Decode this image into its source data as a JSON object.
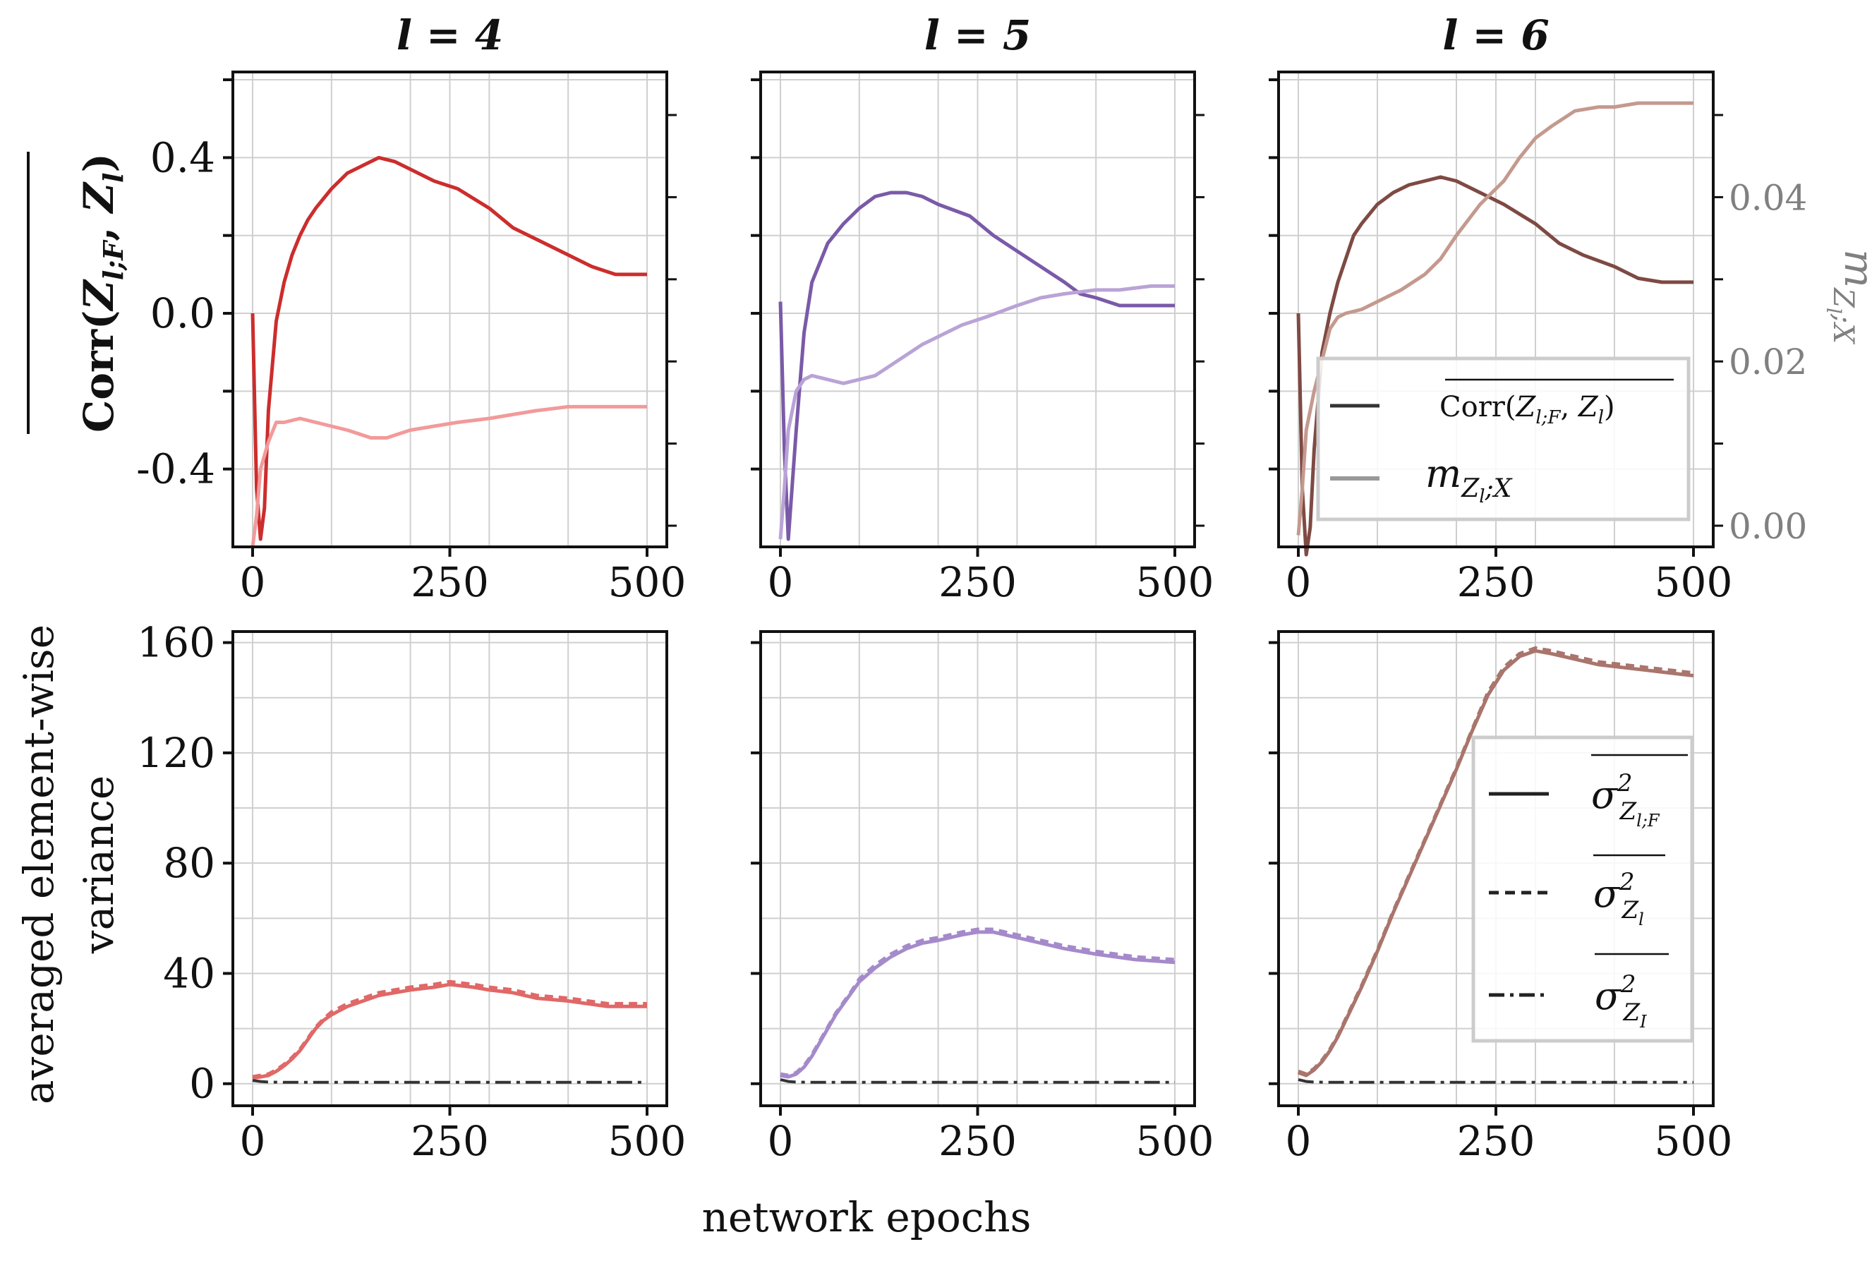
{
  "figure": {
    "xlabel": "network epochs",
    "top_ylabel": "Corr(Z_{l;F}, Z_l) (averaged)",
    "bottom_ylabel": [
      "averaged element-wise",
      "variance"
    ],
    "right_ylabel": "m_{Z_l;X}"
  },
  "colors": {
    "l4": {
      "corr": "#cc2d2d",
      "m": "#f29a9a",
      "var": "#e06868"
    },
    "l5": {
      "corr": "#7a5aa8",
      "m": "#b9a3d6",
      "var": "#a58acb"
    },
    "l6": {
      "corr": "#7e4a43",
      "m": "#c4998e",
      "var": "#a9756c"
    },
    "noise": "#333333"
  },
  "chart_data": [
    {
      "type": "line",
      "panel": "top",
      "title": "l = 4",
      "xlim": [
        0,
        500
      ],
      "ylim": [
        -0.6,
        0.62
      ],
      "yticks": [
        "-0.4",
        "0.0",
        "0.4"
      ],
      "xticks": [
        "0",
        "250",
        "500"
      ],
      "series": [
        {
          "key": "corr",
          "x": [
            0,
            5,
            10,
            15,
            20,
            30,
            40,
            50,
            60,
            70,
            80,
            100,
            120,
            140,
            160,
            180,
            200,
            230,
            260,
            300,
            330,
            360,
            400,
            430,
            460,
            500
          ],
          "y": [
            0.0,
            -0.45,
            -0.58,
            -0.5,
            -0.25,
            -0.02,
            0.08,
            0.15,
            0.2,
            0.24,
            0.27,
            0.32,
            0.36,
            0.38,
            0.4,
            0.39,
            0.37,
            0.34,
            0.32,
            0.27,
            0.22,
            0.19,
            0.15,
            0.12,
            0.1,
            0.1
          ]
        },
        {
          "key": "m",
          "x": [
            0,
            5,
            10,
            20,
            30,
            40,
            60,
            80,
            100,
            120,
            150,
            170,
            200,
            230,
            260,
            300,
            330,
            360,
            400,
            430,
            470,
            500
          ],
          "y": [
            -0.6,
            -0.52,
            -0.4,
            -0.33,
            -0.28,
            -0.28,
            -0.27,
            -0.28,
            -0.29,
            -0.3,
            -0.32,
            -0.32,
            -0.3,
            -0.29,
            -0.28,
            -0.27,
            -0.26,
            -0.25,
            -0.24,
            -0.24,
            -0.24,
            -0.24
          ]
        }
      ]
    },
    {
      "type": "line",
      "panel": "top",
      "title": "l = 5",
      "xlim": [
        0,
        500
      ],
      "ylim": [
        -0.6,
        0.62
      ],
      "xticks": [
        "0",
        "250",
        "500"
      ],
      "series": [
        {
          "key": "corr",
          "x": [
            0,
            5,
            10,
            20,
            30,
            40,
            50,
            60,
            80,
            100,
            120,
            140,
            160,
            180,
            200,
            240,
            270,
            300,
            330,
            360,
            380,
            400,
            430,
            460,
            500
          ],
          "y": [
            0.03,
            -0.35,
            -0.58,
            -0.3,
            -0.05,
            0.08,
            0.13,
            0.18,
            0.23,
            0.27,
            0.3,
            0.31,
            0.31,
            0.3,
            0.28,
            0.25,
            0.2,
            0.16,
            0.12,
            0.08,
            0.05,
            0.04,
            0.02,
            0.02,
            0.02
          ]
        },
        {
          "key": "m",
          "x": [
            0,
            5,
            10,
            20,
            30,
            40,
            60,
            80,
            100,
            120,
            150,
            180,
            200,
            230,
            260,
            300,
            330,
            360,
            400,
            430,
            470,
            500
          ],
          "y": [
            -0.58,
            -0.45,
            -0.3,
            -0.2,
            -0.17,
            -0.16,
            -0.17,
            -0.18,
            -0.17,
            -0.16,
            -0.12,
            -0.08,
            -0.06,
            -0.03,
            -0.01,
            0.02,
            0.04,
            0.05,
            0.06,
            0.06,
            0.07,
            0.07
          ]
        }
      ]
    },
    {
      "type": "line",
      "panel": "top",
      "title": "l = 6",
      "xlim": [
        0,
        500
      ],
      "ylim": [
        -0.6,
        0.62
      ],
      "xticks": [
        "0",
        "250",
        "500"
      ],
      "yticks_right": [
        "0.00",
        "0.02",
        "0.04"
      ],
      "series": [
        {
          "key": "corr",
          "x": [
            0,
            5,
            10,
            15,
            20,
            30,
            40,
            50,
            60,
            70,
            80,
            100,
            120,
            140,
            160,
            180,
            200,
            230,
            260,
            300,
            330,
            360,
            400,
            430,
            460,
            500
          ],
          "y": [
            0.0,
            -0.45,
            -0.62,
            -0.55,
            -0.35,
            -0.1,
            0.0,
            0.08,
            0.14,
            0.2,
            0.23,
            0.28,
            0.31,
            0.33,
            0.34,
            0.35,
            0.34,
            0.31,
            0.28,
            0.23,
            0.18,
            0.15,
            0.12,
            0.09,
            0.08,
            0.08
          ]
        },
        {
          "key": "m",
          "x": [
            0,
            5,
            10,
            20,
            30,
            40,
            50,
            60,
            80,
            100,
            130,
            160,
            180,
            200,
            230,
            260,
            280,
            300,
            320,
            350,
            380,
            400,
            430,
            460,
            500
          ],
          "y": [
            -0.57,
            -0.45,
            -0.3,
            -0.2,
            -0.12,
            -0.04,
            -0.01,
            0.0,
            0.01,
            0.03,
            0.06,
            0.1,
            0.14,
            0.2,
            0.28,
            0.34,
            0.4,
            0.45,
            0.48,
            0.52,
            0.53,
            0.53,
            0.54,
            0.54,
            0.54
          ]
        }
      ]
    },
    {
      "type": "line",
      "panel": "bottom",
      "title": "",
      "xlim": [
        0,
        500
      ],
      "ylim": [
        -8,
        164
      ],
      "yticks": [
        "0",
        "40",
        "80",
        "120",
        "160"
      ],
      "xticks": [
        "0",
        "250",
        "500"
      ],
      "series": [
        {
          "key": "var_F",
          "x": [
            0,
            10,
            20,
            30,
            40,
            50,
            60,
            70,
            80,
            90,
            100,
            120,
            140,
            160,
            180,
            200,
            230,
            250,
            280,
            300,
            330,
            360,
            400,
            450,
            500
          ],
          "y": [
            2,
            2.5,
            3,
            4.5,
            6.5,
            9,
            12,
            16,
            20,
            23,
            25,
            28,
            30,
            32,
            33,
            34,
            35,
            36,
            35,
            34,
            33,
            31,
            30,
            28,
            28
          ]
        },
        {
          "key": "var_l",
          "x": [
            0,
            10,
            20,
            30,
            40,
            50,
            60,
            70,
            80,
            90,
            100,
            120,
            140,
            160,
            180,
            200,
            230,
            250,
            280,
            300,
            330,
            360,
            400,
            450,
            500
          ],
          "y": [
            2.5,
            3,
            3.5,
            5,
            7,
            9.5,
            12.5,
            16.5,
            20.5,
            23.5,
            26,
            29,
            31,
            33,
            34,
            35,
            36,
            37,
            36,
            35,
            34,
            32,
            31,
            29,
            29
          ]
        },
        {
          "key": "var_I",
          "x": [
            0,
            10,
            20,
            40,
            60,
            100,
            200,
            300,
            400,
            500
          ],
          "y": [
            1.2,
            0.8,
            0.6,
            0.5,
            0.5,
            0.5,
            0.5,
            0.5,
            0.5,
            0.5
          ]
        }
      ]
    },
    {
      "type": "line",
      "panel": "bottom",
      "title": "",
      "xlim": [
        0,
        500
      ],
      "ylim": [
        -8,
        164
      ],
      "xticks": [
        "0",
        "250",
        "500"
      ],
      "series": [
        {
          "key": "var_F",
          "x": [
            0,
            10,
            20,
            30,
            40,
            50,
            60,
            70,
            80,
            90,
            100,
            120,
            140,
            160,
            180,
            200,
            230,
            250,
            270,
            300,
            330,
            360,
            400,
            450,
            500
          ],
          "y": [
            3,
            2.5,
            3.5,
            6,
            10,
            15,
            20,
            25,
            29,
            33,
            37,
            42,
            46,
            49,
            51,
            52,
            54,
            55,
            55,
            53,
            51,
            49,
            47,
            45,
            44
          ]
        },
        {
          "key": "var_l",
          "x": [
            0,
            10,
            20,
            30,
            40,
            50,
            60,
            70,
            80,
            90,
            100,
            120,
            140,
            160,
            180,
            200,
            230,
            250,
            270,
            300,
            330,
            360,
            400,
            450,
            500
          ],
          "y": [
            3.5,
            3,
            4,
            6.5,
            10.5,
            15.5,
            20.5,
            25.5,
            29.5,
            33.5,
            38,
            43,
            47,
            50,
            52,
            53,
            55,
            56,
            56,
            54,
            52,
            50,
            48,
            46,
            45
          ]
        },
        {
          "key": "var_I",
          "x": [
            0,
            10,
            20,
            40,
            60,
            100,
            200,
            300,
            400,
            500
          ],
          "y": [
            1.5,
            0.8,
            0.6,
            0.5,
            0.5,
            0.5,
            0.5,
            0.5,
            0.5,
            0.5
          ]
        }
      ]
    },
    {
      "type": "line",
      "panel": "bottom",
      "title": "",
      "xlim": [
        0,
        500
      ],
      "ylim": [
        -8,
        164
      ],
      "xticks": [
        "0",
        "250",
        "500"
      ],
      "series": [
        {
          "key": "var_F",
          "x": [
            0,
            10,
            20,
            30,
            40,
            50,
            60,
            80,
            100,
            120,
            140,
            160,
            180,
            200,
            220,
            240,
            260,
            280,
            300,
            320,
            350,
            380,
            410,
            440,
            470,
            500
          ],
          "y": [
            4,
            3,
            5,
            8,
            12,
            17,
            23,
            35,
            48,
            62,
            75,
            88,
            101,
            114,
            128,
            141,
            150,
            155,
            157,
            156,
            154,
            152,
            151,
            150,
            149,
            148
          ]
        },
        {
          "key": "var_l",
          "x": [
            0,
            10,
            20,
            30,
            40,
            50,
            60,
            80,
            100,
            120,
            140,
            160,
            180,
            200,
            220,
            240,
            260,
            280,
            300,
            320,
            350,
            380,
            410,
            440,
            470,
            500
          ],
          "y": [
            4.5,
            3.5,
            5.5,
            8.5,
            12.5,
            17.5,
            23.5,
            35.5,
            48.5,
            62.5,
            75.5,
            88.5,
            101.5,
            114.5,
            128.5,
            142,
            151,
            156,
            158,
            157,
            155,
            153,
            152,
            151,
            150,
            149
          ]
        },
        {
          "key": "var_I",
          "x": [
            0,
            10,
            20,
            40,
            60,
            100,
            200,
            300,
            400,
            500
          ],
          "y": [
            1.5,
            0.8,
            0.6,
            0.5,
            0.5,
            0.5,
            0.5,
            0.5,
            0.5,
            0.5
          ]
        }
      ]
    }
  ],
  "legends": {
    "top": [
      {
        "key": "corr",
        "label": "Corr(Z_{l;F}, Z_l)",
        "style": "solid",
        "color": "#333333"
      },
      {
        "key": "m",
        "label": "m_{Z_l;X}",
        "style": "solid",
        "color": "#999999"
      }
    ],
    "bottom": [
      {
        "key": "var_F",
        "label": "σ²_{Z_{l;F}}",
        "style": "solid",
        "color": "#222222"
      },
      {
        "key": "var_l",
        "label": "σ²_{Z_l}",
        "style": "dashed",
        "color": "#222222"
      },
      {
        "key": "var_I",
        "label": "σ²_{Z_I}",
        "style": "dashdot",
        "color": "#222222"
      }
    ]
  }
}
